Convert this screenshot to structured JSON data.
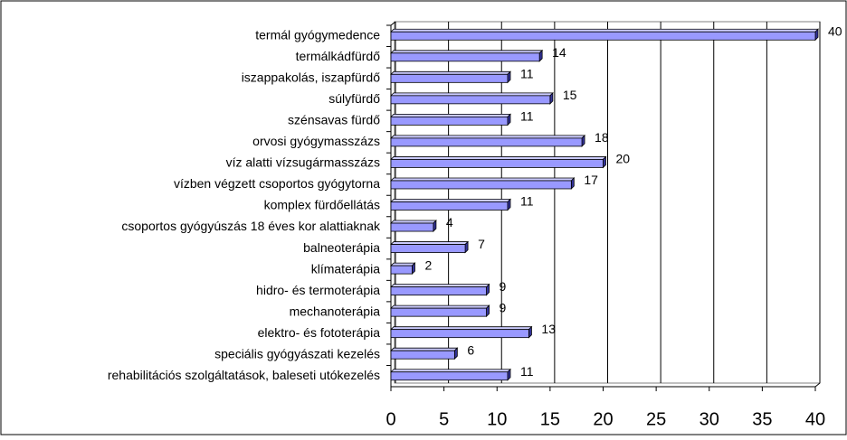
{
  "chart_data": {
    "type": "bar",
    "orientation": "horizontal",
    "categories": [
      "termál gyógymedence",
      "termálkádfürdő",
      "iszappakolás, iszapfürdő",
      "súlyfürdő",
      "szénsavas fürdő",
      "orvosi gyógymasszázs",
      "víz alatti vízsugármasszázs",
      "vízben végzett csoportos gyógytorna",
      "komplex fürdőellátás",
      "csoportos gyógyúszás 18 éves kor alattiaknak",
      "balneoterápia",
      "klímaterápia",
      "hidro- és termoterápia",
      "mechanoterápia",
      "elektro- és fototerápia",
      "speciális gyógyászati kezelés",
      "rehabilitációs szolgáltatások, baleseti utókezelés"
    ],
    "values": [
      40,
      14,
      11,
      15,
      11,
      18,
      20,
      17,
      11,
      4,
      7,
      2,
      9,
      9,
      13,
      6,
      11
    ],
    "color": "#9999ff",
    "xlim": [
      0,
      40
    ],
    "xticks": [
      0,
      5,
      10,
      15,
      20,
      25,
      30,
      35,
      40
    ],
    "grid": true
  }
}
